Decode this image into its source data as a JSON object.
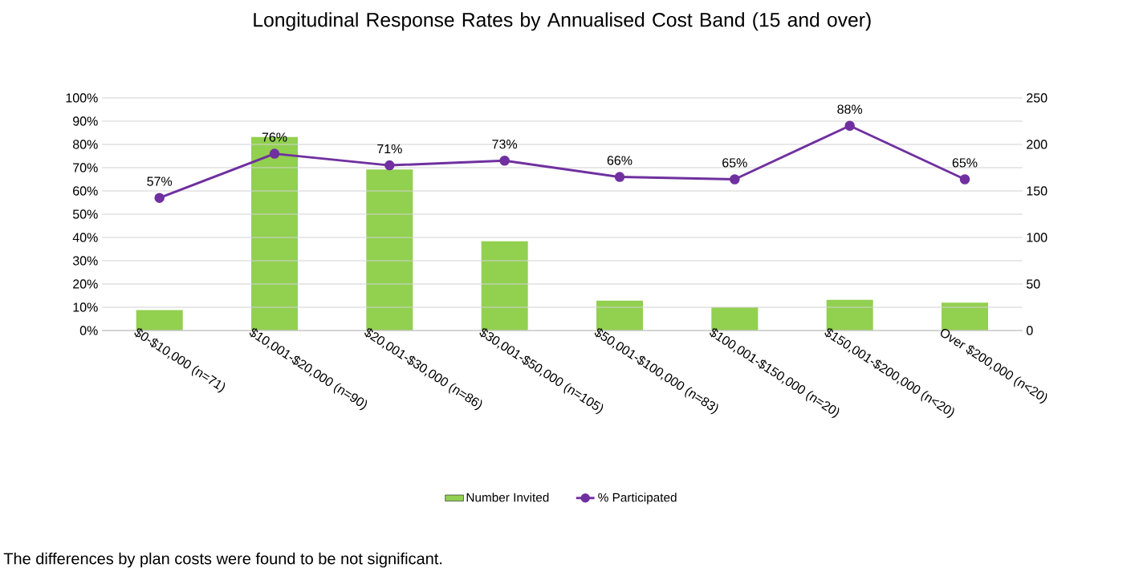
{
  "chart_data": {
    "type": "bar",
    "title": "Longitudinal Response Rates by Annualised Cost Band (15 and over)",
    "categories": [
      "$0-$10,000 (n=71)",
      "$10,001-$20,000 (n=90)",
      "$20,001-$30,000 (n=86)",
      "$30,001-$50,000 (n=105)",
      "$50,001-$100,000 (n=83)",
      "$100,001-$150,000 (n=20)",
      "$150,001-$200,000 (n<20)",
      "Over $200,000 (n<20)"
    ],
    "series": [
      {
        "name": "Number Invited",
        "axis": "y2",
        "color": "#92d050",
        "values": [
          22,
          208,
          173,
          96,
          32,
          25,
          33,
          30
        ]
      },
      {
        "name": "% Participated",
        "type": "line",
        "axis": "y",
        "color": "#7030a0",
        "marker": "circle",
        "values": [
          57,
          76,
          71,
          73,
          66,
          65,
          88,
          65
        ],
        "value_labels": [
          "57%",
          "76%",
          "71%",
          "73%",
          "66%",
          "65%",
          "88%",
          "65%"
        ]
      }
    ],
    "ylim": [
      0,
      100
    ],
    "yticks": [
      {
        "value": 0,
        "label": "0%"
      },
      {
        "value": 10,
        "label": "10%"
      },
      {
        "value": 20,
        "label": "20%"
      },
      {
        "value": 30,
        "label": "30%"
      },
      {
        "value": 40,
        "label": "40%"
      },
      {
        "value": 50,
        "label": "50%"
      },
      {
        "value": 60,
        "label": "60%"
      },
      {
        "value": 70,
        "label": "70%"
      },
      {
        "value": 80,
        "label": "80%"
      },
      {
        "value": 90,
        "label": "90%"
      },
      {
        "value": 100,
        "label": "100%"
      }
    ],
    "y2lim": [
      0,
      250
    ],
    "y2ticks": [
      0,
      50,
      100,
      150,
      200,
      250
    ],
    "grid": "y",
    "legend": "bottom",
    "annotations": [
      "The differences by plan costs were found to be not significant."
    ]
  }
}
